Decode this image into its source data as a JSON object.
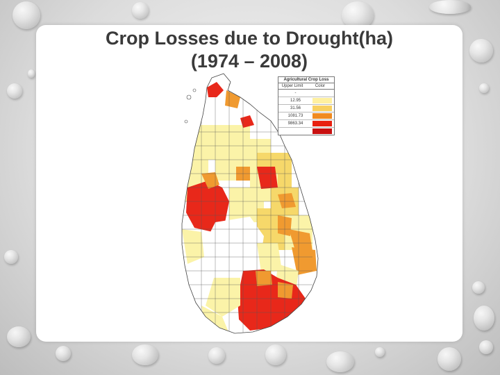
{
  "slide": {
    "title_line1": "Crop Losses  due to Drought(ha)",
    "title_line2": "(1974 – 2008)"
  },
  "legend": {
    "title": "Agricultural Crop Loss",
    "col_limit": "Upper Limit",
    "col_color": "Color",
    "dash": "-",
    "rows": [
      {
        "limit": "12.95",
        "color": "#fff0a0"
      },
      {
        "limit": "31.56",
        "color": "#f8d060"
      },
      {
        "limit": "1081.73",
        "color": "#f08a20"
      },
      {
        "limit": "9863.34",
        "color": "#e82010"
      },
      {
        "limit": "",
        "color": "#c81010"
      }
    ]
  },
  "colors": {
    "pale": "#fbf3a8",
    "yellow": "#f6d86a",
    "orange": "#f09a30",
    "red": "#e8281a",
    "white": "#ffffff"
  }
}
